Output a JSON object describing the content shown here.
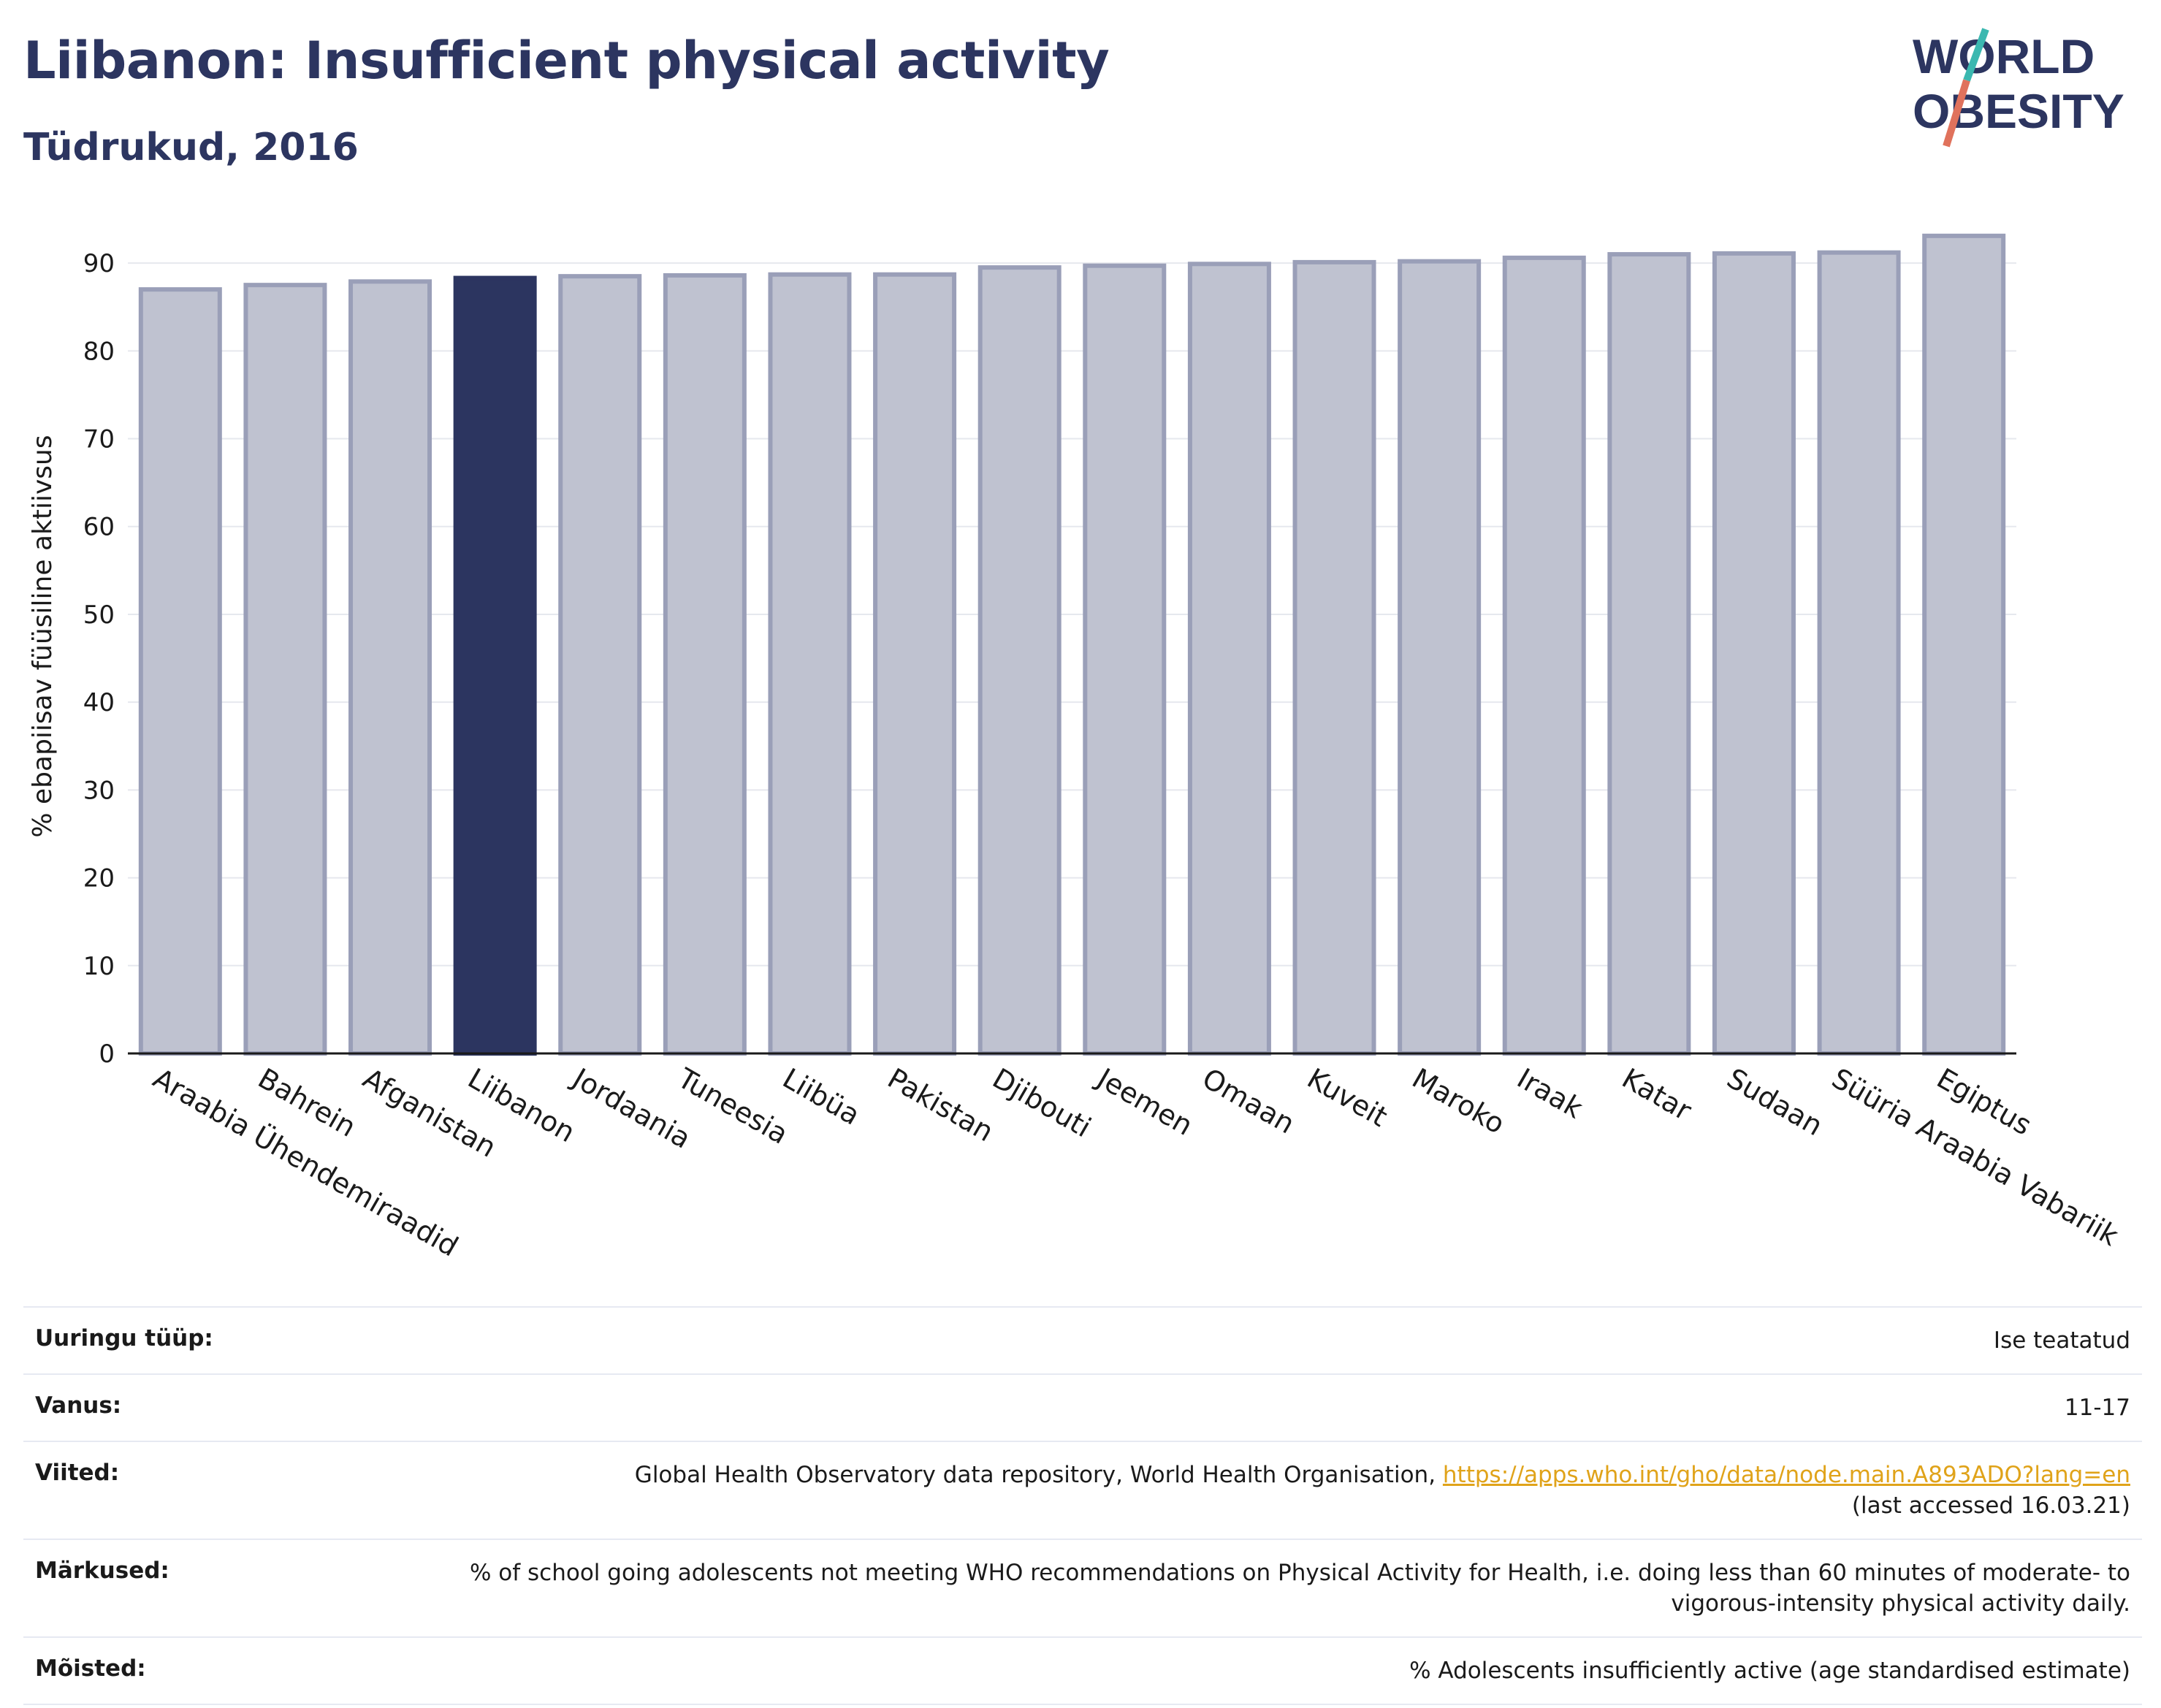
{
  "header": {
    "title": "Liibanon: Insufficient physical activity",
    "subtitle": "Tüdrukud, 2016"
  },
  "logo": {
    "line1": "WORLD",
    "line2": "OBESITY",
    "colors": {
      "text": "#2c3560",
      "slash_teal": "#3bb8b0",
      "slash_coral": "#e0725c"
    }
  },
  "colors": {
    "highlight": "#2c3560",
    "bar_fill": "#bfc2d0",
    "bar_stroke": "#9a9fb8",
    "grid": "#e6e8ee",
    "text": "#1a1a1a"
  },
  "chart_data": {
    "type": "bar",
    "ylabel": "% ebapiisav füüsiline aktiivsus",
    "xlabel": "",
    "ylim": [
      0,
      95
    ],
    "yticks": [
      0,
      10,
      20,
      30,
      40,
      50,
      60,
      70,
      80,
      90
    ],
    "grid": true,
    "highlight": "Liibanon",
    "categories": [
      "Araabia Ühendemiraadid",
      "Bahrein",
      "Afganistan",
      "Liibanon",
      "Jordaania",
      "Tuneesia",
      "Liibüa",
      "Pakistan",
      "Djibouti",
      "Jeemen",
      "Omaan",
      "Kuveit",
      "Maroko",
      "Iraak",
      "Katar",
      "Sudaan",
      "Süüria Araabia Vabariik",
      "Egiptus"
    ],
    "values": [
      87.0,
      87.5,
      87.9,
      88.3,
      88.5,
      88.6,
      88.7,
      88.7,
      89.5,
      89.7,
      89.9,
      90.1,
      90.2,
      90.6,
      91.0,
      91.1,
      91.2,
      93.1
    ]
  },
  "meta": [
    {
      "label": "Uuringu tüüp:",
      "value": "Ise teatatud"
    },
    {
      "label": "Vanus:",
      "value": "11-17"
    },
    {
      "label": "Viited:",
      "value": "Global Health Observatory data repository, World Health Organisation, ",
      "link": "https://apps.who.int/gho/data/node.main.A893ADO?lang=en",
      "suffix": "(last accessed 16.03.21)"
    },
    {
      "label": "Märkused:",
      "value": "% of school going adolescents not meeting WHO recommendations on Physical Activity for Health, i.e. doing less than 60 minutes of moderate- to vigorous-intensity physical activity daily."
    },
    {
      "label": "Mõisted:",
      "value": "% Adolescents insufficiently active (age standardised estimate)"
    }
  ]
}
